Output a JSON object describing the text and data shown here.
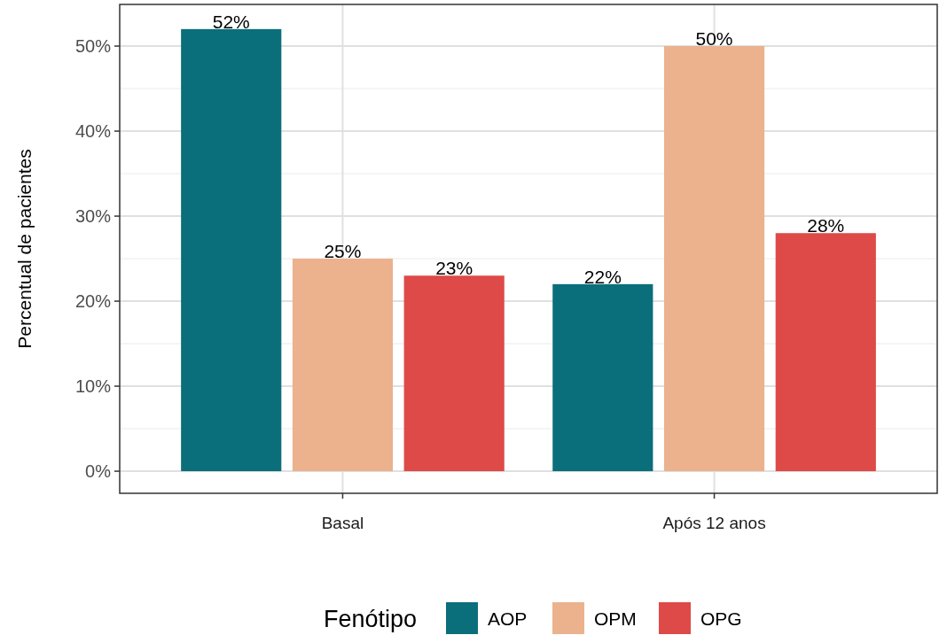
{
  "chart_data": {
    "type": "bar",
    "ylabel": "Percentual de pacientes",
    "legend_title": "Fenótipo",
    "categories": [
      "Basal",
      "Após 12 anos"
    ],
    "series": [
      {
        "name": "AOP",
        "color": "#0b6e7b",
        "values": [
          52,
          22
        ],
        "value_labels": [
          "52%",
          "22%"
        ]
      },
      {
        "name": "OPM",
        "color": "#ebb28d",
        "values": [
          25,
          50
        ],
        "value_labels": [
          "25%",
          "50%"
        ]
      },
      {
        "name": "OPG",
        "color": "#dd4a48",
        "values": [
          23,
          28
        ],
        "value_labels": [
          "23%",
          "28%"
        ]
      }
    ],
    "ylim": [
      -2.6,
      54.9
    ],
    "yticks": [
      {
        "value": 0,
        "label": "0%"
      },
      {
        "value": 10,
        "label": "10%"
      },
      {
        "value": 20,
        "label": "20%"
      },
      {
        "value": 30,
        "label": "30%"
      },
      {
        "value": 40,
        "label": "40%"
      },
      {
        "value": 50,
        "label": "50%"
      }
    ],
    "grid": true,
    "legend": "bottom"
  }
}
